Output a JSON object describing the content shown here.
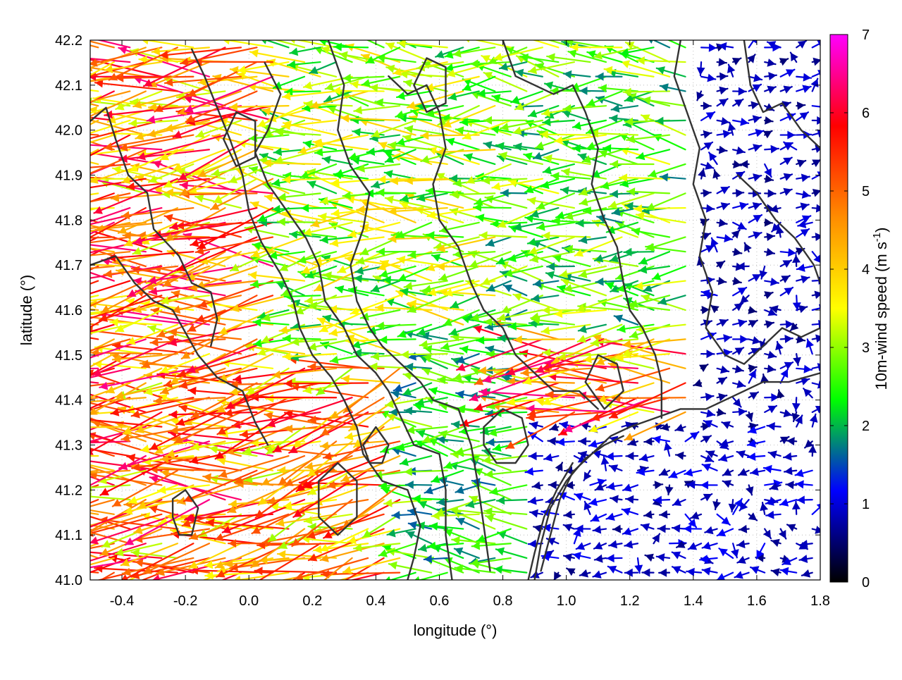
{
  "chart_data": {
    "type": "vector-field",
    "title": "",
    "xlabel": "longitude (°)",
    "ylabel": "latitude (°)",
    "xlim": [
      -0.5,
      1.8
    ],
    "ylim": [
      41.0,
      42.2
    ],
    "x_ticks": [
      "-0.4",
      "-0.2",
      "0.0",
      "0.2",
      "0.4",
      "0.6",
      "0.8",
      "1.0",
      "1.2",
      "1.4",
      "1.6",
      "1.8"
    ],
    "y_ticks": [
      "41.0",
      "41.1",
      "41.2",
      "41.3",
      "41.4",
      "41.5",
      "41.6",
      "41.7",
      "41.8",
      "41.9",
      "42.0",
      "42.1",
      "42.2"
    ],
    "grid": true,
    "grid_style": "dotted",
    "colorbar": {
      "label_main": "10m-wind speed (m s",
      "label_sup": "-1",
      "label_close": ")",
      "min": 0,
      "max": 7,
      "ticks": [
        "0",
        "1",
        "2",
        "3",
        "4",
        "5",
        "6",
        "7"
      ],
      "colormap": [
        "#000000",
        "#0000ff",
        "#00ff00",
        "#ffff00",
        "#ff8c00",
        "#ff0000",
        "#ff00ff"
      ]
    },
    "wind_regimes": [
      {
        "lon": [
          -0.5,
          0.1
        ],
        "lat": [
          41.0,
          42.2
        ],
        "speed": 4.8,
        "direction_deg": 185
      },
      {
        "lon": [
          0.1,
          0.5
        ],
        "lat": [
          41.0,
          41.5
        ],
        "speed": 4.5,
        "direction_deg": 195
      },
      {
        "lon": [
          0.1,
          0.8
        ],
        "lat": [
          41.5,
          42.2
        ],
        "speed": 3.0,
        "direction_deg": 180
      },
      {
        "lon": [
          0.8,
          1.4
        ],
        "lat": [
          41.55,
          42.2
        ],
        "speed": 2.6,
        "direction_deg": 178
      },
      {
        "lon": [
          0.5,
          0.9
        ],
        "lat": [
          41.0,
          41.55
        ],
        "speed": 2.4,
        "direction_deg": 178
      },
      {
        "lon": [
          0.9,
          1.8
        ],
        "lat": [
          41.0,
          41.35
        ],
        "speed": 0.9,
        "direction_deg": 180
      },
      {
        "lon": [
          1.4,
          1.8
        ],
        "lat": [
          41.35,
          42.2
        ],
        "speed": 0.8,
        "direction_deg": 10
      }
    ],
    "contour_paths": [
      [
        [
          -0.5,
          42.02
        ],
        [
          -0.45,
          42.05
        ],
        [
          -0.42,
          41.98
        ],
        [
          -0.38,
          41.9
        ],
        [
          -0.32,
          41.86
        ],
        [
          -0.3,
          41.78
        ],
        [
          -0.22,
          41.72
        ],
        [
          -0.18,
          41.66
        ],
        [
          -0.12,
          41.64
        ],
        [
          -0.1,
          41.58
        ],
        [
          -0.12,
          41.52
        ]
      ],
      [
        [
          -0.5,
          41.7
        ],
        [
          -0.42,
          41.72
        ],
        [
          -0.36,
          41.66
        ],
        [
          -0.3,
          41.62
        ],
        [
          -0.24,
          41.6
        ],
        [
          -0.2,
          41.55
        ],
        [
          -0.16,
          41.5
        ],
        [
          -0.1,
          41.45
        ],
        [
          -0.02,
          41.42
        ],
        [
          0.02,
          41.35
        ],
        [
          0.06,
          41.3
        ]
      ],
      [
        [
          -0.18,
          42.18
        ],
        [
          -0.14,
          42.12
        ],
        [
          -0.1,
          42.05
        ],
        [
          -0.06,
          41.98
        ],
        [
          -0.02,
          41.9
        ],
        [
          0.0,
          41.82
        ],
        [
          0.04,
          41.75
        ],
        [
          0.1,
          41.68
        ],
        [
          0.14,
          41.62
        ],
        [
          0.16,
          41.56
        ],
        [
          0.2,
          41.5
        ],
        [
          0.26,
          41.45
        ],
        [
          0.3,
          41.4
        ],
        [
          0.34,
          41.34
        ],
        [
          0.36,
          41.28
        ],
        [
          0.42,
          41.22
        ],
        [
          0.5,
          41.2
        ],
        [
          0.54,
          41.12
        ],
        [
          0.52,
          41.05
        ],
        [
          0.5,
          41.0
        ]
      ],
      [
        [
          0.05,
          42.15
        ],
        [
          0.1,
          42.08
        ],
        [
          0.06,
          42.0
        ],
        [
          0.02,
          41.95
        ],
        [
          0.06,
          41.88
        ],
        [
          0.12,
          41.82
        ],
        [
          0.18,
          41.76
        ],
        [
          0.22,
          41.7
        ],
        [
          0.24,
          41.62
        ],
        [
          0.3,
          41.56
        ],
        [
          0.34,
          41.5
        ],
        [
          0.4,
          41.46
        ],
        [
          0.44,
          41.42
        ],
        [
          0.48,
          41.36
        ],
        [
          0.52,
          41.3
        ],
        [
          0.6,
          41.28
        ],
        [
          0.62,
          41.2
        ],
        [
          0.62,
          41.1
        ],
        [
          0.64,
          41.0
        ]
      ],
      [
        [
          0.25,
          42.2
        ],
        [
          0.3,
          42.1
        ],
        [
          0.28,
          42.0
        ],
        [
          0.32,
          41.92
        ],
        [
          0.38,
          41.86
        ],
        [
          0.36,
          41.78
        ],
        [
          0.32,
          41.7
        ],
        [
          0.34,
          41.62
        ],
        [
          0.38,
          41.56
        ],
        [
          0.42,
          41.52
        ],
        [
          0.48,
          41.48
        ],
        [
          0.54,
          41.44
        ],
        [
          0.58,
          41.4
        ],
        [
          0.66,
          41.38
        ],
        [
          0.7,
          41.3
        ],
        [
          0.72,
          41.22
        ],
        [
          0.74,
          41.12
        ],
        [
          0.76,
          41.02
        ]
      ],
      [
        [
          0.44,
          42.12
        ],
        [
          0.5,
          42.08
        ],
        [
          0.56,
          42.1
        ],
        [
          0.6,
          42.04
        ],
        [
          0.62,
          41.96
        ],
        [
          0.58,
          41.88
        ],
        [
          0.6,
          41.8
        ],
        [
          0.66,
          41.74
        ],
        [
          0.7,
          41.66
        ],
        [
          0.74,
          41.6
        ],
        [
          0.8,
          41.56
        ],
        [
          0.84,
          41.5
        ],
        [
          0.9,
          41.46
        ],
        [
          0.96,
          41.42
        ],
        [
          1.04,
          41.42
        ],
        [
          1.1,
          41.38
        ]
      ],
      [
        [
          0.8,
          42.2
        ],
        [
          0.84,
          42.12
        ],
        [
          0.9,
          42.1
        ],
        [
          0.96,
          42.08
        ],
        [
          1.02,
          42.1
        ],
        [
          1.06,
          42.04
        ],
        [
          1.1,
          41.96
        ],
        [
          1.08,
          41.88
        ],
        [
          1.12,
          41.8
        ],
        [
          1.16,
          41.74
        ],
        [
          1.18,
          41.66
        ],
        [
          1.2,
          41.6
        ],
        [
          1.24,
          41.56
        ],
        [
          1.28,
          41.5
        ],
        [
          1.3,
          41.44
        ],
        [
          1.3,
          41.36
        ]
      ],
      [
        [
          0.92,
          41.02
        ],
        [
          0.95,
          41.1
        ],
        [
          0.98,
          41.18
        ],
        [
          1.02,
          41.24
        ],
        [
          1.08,
          41.28
        ],
        [
          1.14,
          41.32
        ],
        [
          1.2,
          41.34
        ],
        [
          1.28,
          41.36
        ],
        [
          1.36,
          41.38
        ],
        [
          1.44,
          41.38
        ],
        [
          1.5,
          41.4
        ],
        [
          1.56,
          41.42
        ],
        [
          1.62,
          41.44
        ],
        [
          1.7,
          41.44
        ],
        [
          1.8,
          41.46
        ]
      ],
      [
        [
          0.9,
          41.0
        ],
        [
          0.92,
          41.08
        ],
        [
          0.95,
          41.16
        ],
        [
          1.0,
          41.22
        ],
        [
          1.06,
          41.27
        ],
        [
          1.12,
          41.3
        ],
        [
          1.18,
          41.32
        ]
      ],
      [
        [
          0.88,
          41.0
        ],
        [
          0.9,
          41.06
        ],
        [
          0.93,
          41.14
        ],
        [
          0.97,
          41.2
        ],
        [
          1.02,
          41.26
        ]
      ],
      [
        [
          1.36,
          42.2
        ],
        [
          1.34,
          42.12
        ],
        [
          1.38,
          42.04
        ],
        [
          1.42,
          41.96
        ],
        [
          1.4,
          41.88
        ],
        [
          1.44,
          41.8
        ],
        [
          1.42,
          41.72
        ],
        [
          1.46,
          41.64
        ],
        [
          1.44,
          41.56
        ],
        [
          1.5,
          41.5
        ],
        [
          1.56,
          41.48
        ],
        [
          1.62,
          41.52
        ],
        [
          1.68,
          41.56
        ],
        [
          1.74,
          41.54
        ],
        [
          1.8,
          41.56
        ]
      ],
      [
        [
          1.56,
          42.2
        ],
        [
          1.58,
          42.1
        ],
        [
          1.62,
          42.04
        ],
        [
          1.68,
          42.06
        ],
        [
          1.74,
          42.0
        ],
        [
          1.8,
          41.96
        ]
      ],
      [
        [
          1.54,
          41.9
        ],
        [
          1.6,
          41.86
        ],
        [
          1.66,
          41.8
        ],
        [
          1.72,
          41.76
        ],
        [
          1.78,
          41.7
        ],
        [
          1.8,
          41.66
        ]
      ],
      [
        [
          0.36,
          41.3
        ],
        [
          0.4,
          41.34
        ],
        [
          0.44,
          41.3
        ],
        [
          0.42,
          41.26
        ],
        [
          0.38,
          41.26
        ],
        [
          0.36,
          41.3
        ]
      ],
      [
        [
          0.74,
          41.34
        ],
        [
          0.8,
          41.38
        ],
        [
          0.86,
          41.36
        ],
        [
          0.88,
          41.3
        ],
        [
          0.84,
          41.26
        ],
        [
          0.78,
          41.26
        ],
        [
          0.74,
          41.3
        ],
        [
          0.74,
          41.34
        ]
      ],
      [
        [
          -0.24,
          41.18
        ],
        [
          -0.2,
          41.2
        ],
        [
          -0.16,
          41.16
        ],
        [
          -0.18,
          41.1
        ],
        [
          -0.22,
          41.1
        ],
        [
          -0.24,
          41.14
        ],
        [
          -0.24,
          41.18
        ]
      ],
      [
        [
          0.22,
          41.22
        ],
        [
          0.28,
          41.26
        ],
        [
          0.34,
          41.22
        ],
        [
          0.34,
          41.14
        ],
        [
          0.28,
          41.1
        ],
        [
          0.22,
          41.14
        ],
        [
          0.22,
          41.22
        ]
      ],
      [
        [
          0.52,
          42.1
        ],
        [
          0.56,
          42.16
        ],
        [
          0.62,
          42.14
        ],
        [
          0.62,
          42.06
        ],
        [
          0.56,
          42.04
        ],
        [
          0.52,
          42.1
        ]
      ],
      [
        [
          -0.08,
          41.98
        ],
        [
          -0.04,
          42.04
        ],
        [
          0.02,
          42.02
        ],
        [
          0.02,
          41.94
        ],
        [
          -0.04,
          41.92
        ],
        [
          -0.08,
          41.98
        ]
      ],
      [
        [
          1.06,
          41.44
        ],
        [
          1.1,
          41.5
        ],
        [
          1.16,
          41.48
        ],
        [
          1.18,
          41.42
        ],
        [
          1.12,
          41.38
        ],
        [
          1.06,
          41.44
        ]
      ]
    ]
  }
}
